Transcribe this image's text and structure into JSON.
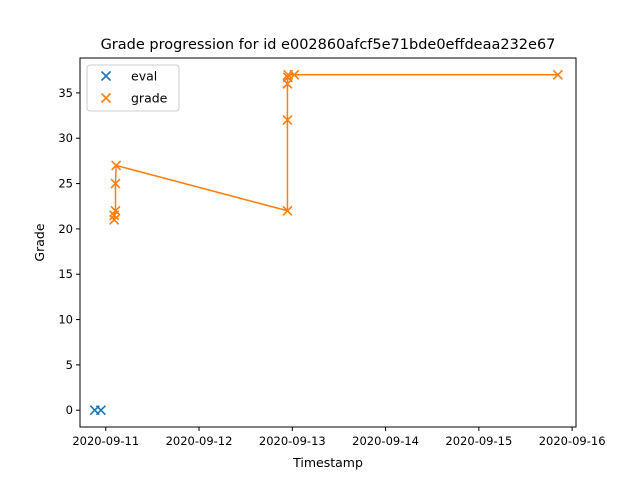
{
  "chart_data": {
    "type": "scatter",
    "title": "Grade progression for id e002860afcf5e71bde0effdeaa232e67",
    "xlabel": "Timestamp",
    "ylabel": "Grade",
    "x_is_date": true,
    "xlim": [
      "2020-09-10T17:22:00",
      "2020-09-16T01:00:00"
    ],
    "ylim": [
      -1.85,
      38.85
    ],
    "x_ticks": [
      "2020-09-11",
      "2020-09-12",
      "2020-09-13",
      "2020-09-14",
      "2020-09-15",
      "2020-09-16"
    ],
    "y_ticks": [
      0,
      5,
      10,
      15,
      20,
      25,
      30,
      35
    ],
    "grid": false,
    "legend": {
      "position": "top-left"
    },
    "series": [
      {
        "name": "eval",
        "color": "#1f77b4",
        "marker": "x",
        "line": false,
        "points": [
          {
            "x": "2020-09-10T21:10:00",
            "y": 0
          },
          {
            "x": "2020-09-10T22:45:00",
            "y": 0
          }
        ]
      },
      {
        "name": "grade",
        "color": "#ff7f0e",
        "marker": "x",
        "line": true,
        "points": [
          {
            "x": "2020-09-11T02:10:00",
            "y": 21
          },
          {
            "x": "2020-09-11T02:10:00",
            "y": 21.5
          },
          {
            "x": "2020-09-11T02:30:00",
            "y": 22
          },
          {
            "x": "2020-09-11T02:30:00",
            "y": 25
          },
          {
            "x": "2020-09-11T02:40:00",
            "y": 27
          },
          {
            "x": "2020-09-12T22:45:00",
            "y": 22
          },
          {
            "x": "2020-09-12T22:45:00",
            "y": 32
          },
          {
            "x": "2020-09-12T22:45:00",
            "y": 36
          },
          {
            "x": "2020-09-12T22:50:00",
            "y": 36.7
          },
          {
            "x": "2020-09-12T22:55:00",
            "y": 37
          },
          {
            "x": "2020-09-13T00:30:00",
            "y": 37
          },
          {
            "x": "2020-09-15T20:20:00",
            "y": 37
          }
        ]
      }
    ]
  }
}
